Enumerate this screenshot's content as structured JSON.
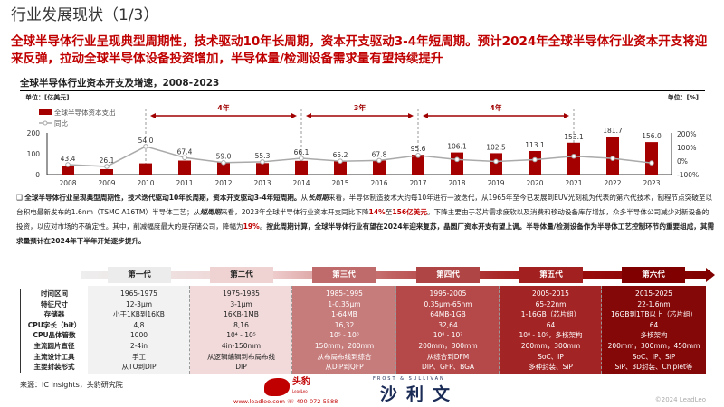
{
  "page": {
    "title": "行业发展现状（1/3）",
    "headline": "全球半导体行业呈现典型周期性，技术驱动10年长周期，资本开支驱动3-4年短周期。预计2024年全球半导体行业资本开支将迎来反弹，拉动全球半导体设备投资增加，半导体量/检测设备需求量有望持续提升"
  },
  "chart_data": {
    "type": "bar+line",
    "title": "全球半导体行业资本开支及增速，2008-2023",
    "left_unit": "单位：[亿美元]",
    "right_unit": "单位：[%]",
    "categories": [
      "2008",
      "2009",
      "2010",
      "2011",
      "2012",
      "2013",
      "2014",
      "2015",
      "2016",
      "2017",
      "2018",
      "2019",
      "2020",
      "2021",
      "2022",
      "2023"
    ],
    "series": [
      {
        "name": "全球半导体资本支出",
        "type": "bar",
        "axis": "left",
        "color": "#a50000",
        "values": [
          43.4,
          26.1,
          54.0,
          67.4,
          59.0,
          55.3,
          66.1,
          65.2,
          67.8,
          95.6,
          106.1,
          102.5,
          113.1,
          153.1,
          181.7,
          156.0
        ]
      },
      {
        "name": "同比",
        "type": "line",
        "axis": "right",
        "color": "#aaaaaa",
        "values": [
          -27,
          -40,
          107,
          25,
          -12,
          -6,
          20,
          -1,
          4,
          41,
          11,
          -3,
          10,
          35,
          19,
          -14
        ]
      }
    ],
    "left_ticks": [
      "0",
      "100",
      "200"
    ],
    "ylim_left": [
      0,
      200
    ],
    "right_ticks": [
      "-100%",
      "0%",
      "100%",
      "200%"
    ],
    "ylim_right": [
      -100,
      200
    ],
    "cycles": [
      {
        "from": "2010",
        "to": "2014",
        "label": "4年"
      },
      {
        "from": "2014",
        "to": "2017",
        "label": "3年"
      },
      {
        "from": "2017",
        "to": "2021",
        "label": "4年"
      }
    ]
  },
  "bullet": {
    "p1": "全球半导体行业呈现典型周期性，技术迭代驱动10年长周期，资本开支驱动3-4年短周期。",
    "p2": "从",
    "long": "长周期",
    "p3": "来看，半导体制造技术大约每10年进行一波迭代，从1965年至今已发展到EUV光刻机为代表的第六代技术，制程节点突破至以台积电最新发布的1.6nm（TSMC A16TM）半导体工艺；从",
    "short": "短周期",
    "p4": "来看，2023年全球半导体行业资本开支同比下降",
    "v1": "14%",
    "p5": "至",
    "v2": "156亿美元",
    "p6": "。下降主要由于芯片需求疲软以及消费和移动设备库存增加，众多半导体公司减少对新设备的投资，以应对市场的不确定性。其中，削减幅度最大的是存储公司，降幅为",
    "v3": "19%",
    "p7": "。",
    "p8": "按此周期计算，全球半导体行业有望在2024年迎来复苏，晶圆厂资本开支有望上调。半导体量/检测设备作为半导体工艺控制环节的重要组成，其需求量预计在2024年下半年开始逐步提升。"
  },
  "table": {
    "generations": [
      "第一代",
      "第二代",
      "第三代",
      "第四代",
      "第五代",
      "第六代"
    ],
    "row_labels": [
      "时间区间",
      "特征尺寸",
      "存储器",
      "CPU字长（bit）",
      "CPU晶体管数",
      "主流圆片直径",
      "主流设计工具",
      "主要封装形式"
    ],
    "columns": [
      [
        "1965-1975",
        "12-3μm",
        "小于1KB到16KB",
        "4,8",
        "1000",
        "2-4in",
        "手工",
        "从TO到DIP"
      ],
      [
        "1975-1985",
        "3-1μm",
        "16KB-1MB",
        "8,16",
        "10⁴ - 10⁵",
        "4in-150mm",
        "从逻辑编辑到布局布线",
        "DIP"
      ],
      [
        "1985-1995",
        "1-0.35μm",
        "1-64MB",
        "16,32",
        "10⁵ - 10⁶",
        "150mm，200mm",
        "从布局布线到综合",
        "从DIP到QFP"
      ],
      [
        "1995-2005",
        "0.35μm-65nm",
        "64MB-1GB",
        "32,64",
        "10⁶ - 10⁷",
        "200mm，300mm",
        "从综合到DFM",
        "DIP、GFP、BGA"
      ],
      [
        "2005-2015",
        "65-22nm",
        "1-16GB（芯片组）",
        "64",
        "10⁸ - 10⁹，多核架构",
        "200mm，300mm",
        "SoC、IP",
        "多种封装、SiP"
      ],
      [
        "2015-2025",
        "22-1.6nm",
        "16GB到1TB以上（芯片组）",
        "64",
        "多核架构",
        "200mm，300mm，450mm",
        "SoC、IP、SiP",
        "SiP、3D封装、Chiplet等"
      ]
    ],
    "col_colors": [
      "#f2f2f2",
      "#f2dada",
      "#c77c7c",
      "#b54848",
      "#a32424",
      "#850808"
    ],
    "gen_colors": [
      "#ececec",
      "#efd3d3",
      "#c06b6b",
      "#b04545",
      "#a32020",
      "#800000"
    ]
  },
  "footer": {
    "source": "来源：IC Insights，头豹研究院",
    "brand_cn": "头豹",
    "brand_en": "LeadLeo",
    "website": "www.leadleo.com",
    "phone": "400-072-5588",
    "partner_en": "FROST & SULLIVAN",
    "partner_cn": "沙利文",
    "copyright": "©2024 LeadLeo"
  }
}
